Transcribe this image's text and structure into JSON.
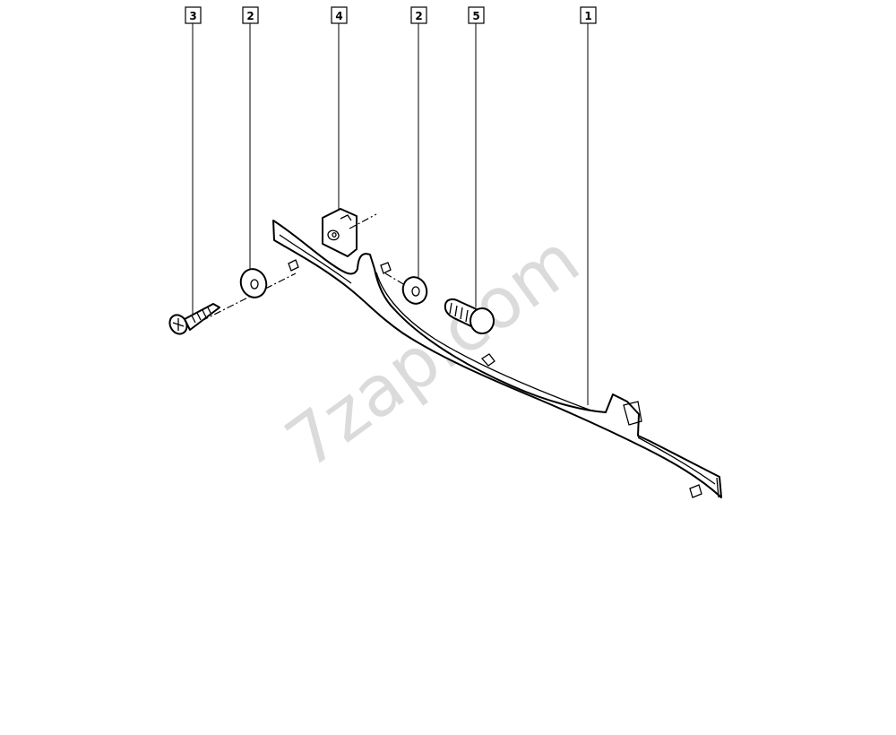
{
  "callouts": [
    {
      "id": "c1",
      "label": "3"
    },
    {
      "id": "c2",
      "label": "2"
    },
    {
      "id": "c3",
      "label": "4"
    },
    {
      "id": "c4",
      "label": "2"
    },
    {
      "id": "c5",
      "label": "5"
    },
    {
      "id": "c6",
      "label": "1"
    }
  ],
  "watermark": "7zap.com"
}
